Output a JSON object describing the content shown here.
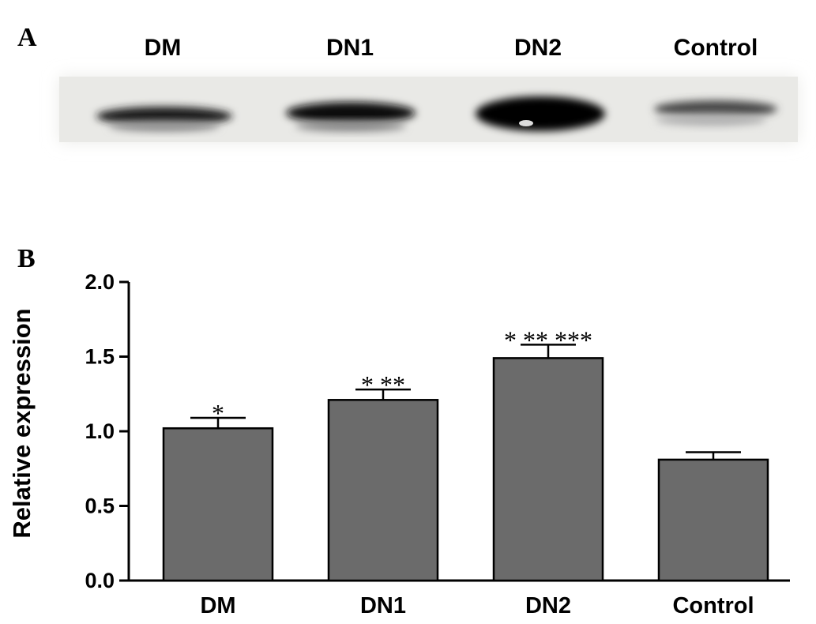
{
  "panel_a": {
    "label": "A",
    "lanes": [
      "DM",
      "DN1",
      "DN2",
      "Control"
    ]
  },
  "chart_data": {
    "type": "bar",
    "panel_label": "B",
    "ylabel": "Relative expression",
    "categories": [
      "DM",
      "DN1",
      "DN2",
      "Control"
    ],
    "values": [
      1.02,
      1.21,
      1.49,
      0.81
    ],
    "errors": [
      0.07,
      0.07,
      0.09,
      0.05
    ],
    "annotations": [
      "*",
      "* **",
      "* ** ***",
      null
    ],
    "color": "#6b6b6b",
    "ylim": [
      0,
      2.0
    ],
    "yticks": [
      {
        "value": 0,
        "label": "0.0"
      },
      0.5,
      {
        "value": 1,
        "label": "1.0"
      },
      1.5,
      {
        "value": 2,
        "label": "2.0"
      }
    ]
  }
}
